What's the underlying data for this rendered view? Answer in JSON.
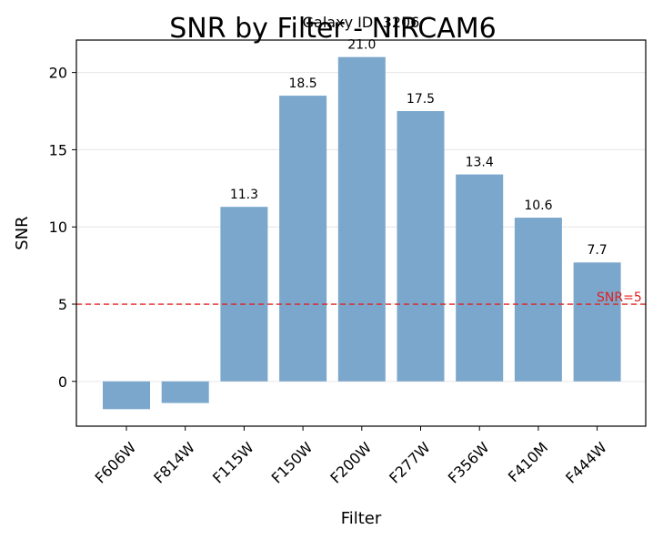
{
  "chart_data": {
    "type": "bar",
    "title": "SNR by Filter - NIRCAM6",
    "subtitle": "Galaxy ID: 3206",
    "xlabel": "Filter",
    "ylabel": "SNR",
    "categories": [
      "F606W",
      "F814W",
      "F115W",
      "F150W",
      "F200W",
      "F277W",
      "F356W",
      "F410M",
      "F444W"
    ],
    "values": [
      -1.8,
      -1.4,
      11.3,
      18.5,
      21.0,
      17.5,
      13.4,
      10.6,
      7.7
    ],
    "value_labels": [
      "",
      "",
      "11.3",
      "18.5",
      "21.0",
      "17.5",
      "13.4",
      "10.6",
      "7.7"
    ],
    "ylim": [
      -2.9,
      22.1
    ],
    "yticks": [
      "0",
      "5",
      "10",
      "15",
      "20"
    ],
    "grid": "horizontal",
    "bar_color": "#7ba7cc",
    "reference_line": {
      "value": 5,
      "label": "SNR=5",
      "color": "#e02020",
      "style": "dashed"
    }
  }
}
